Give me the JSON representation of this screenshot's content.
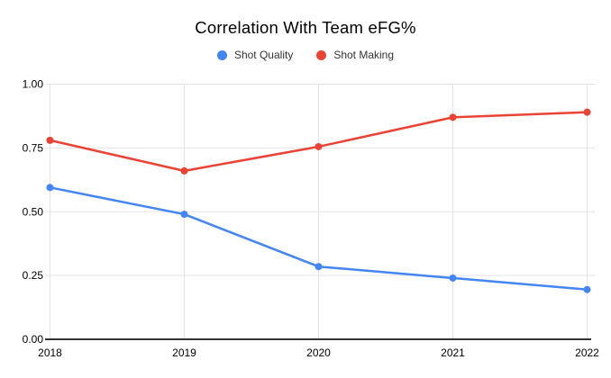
{
  "chart_data": {
    "type": "line",
    "title": "Correlation With Team eFG%",
    "categories": [
      "2018",
      "2019",
      "2020",
      "2021",
      "2022"
    ],
    "series": [
      {
        "name": "Shot Quality",
        "color": "#4285f4",
        "values": [
          0.595,
          0.49,
          0.285,
          0.24,
          0.195
        ]
      },
      {
        "name": "Shot Making",
        "color": "#ea4335",
        "values": [
          0.78,
          0.66,
          0.755,
          0.87,
          0.89
        ]
      }
    ],
    "xlabel": "",
    "ylabel": "",
    "ylim": [
      0,
      1
    ],
    "y_tick_labels": [
      "0.00",
      "0.25",
      "0.50",
      "0.75",
      "1.00"
    ],
    "legend_position": "top",
    "grid": true,
    "marker": "circle"
  },
  "colors": {
    "background": "#ffffff",
    "gridline": "#e3e3e3",
    "axis_line": "#333333",
    "tick_text": "#000000",
    "title_text": "#000000",
    "legend_text": "#333333"
  }
}
